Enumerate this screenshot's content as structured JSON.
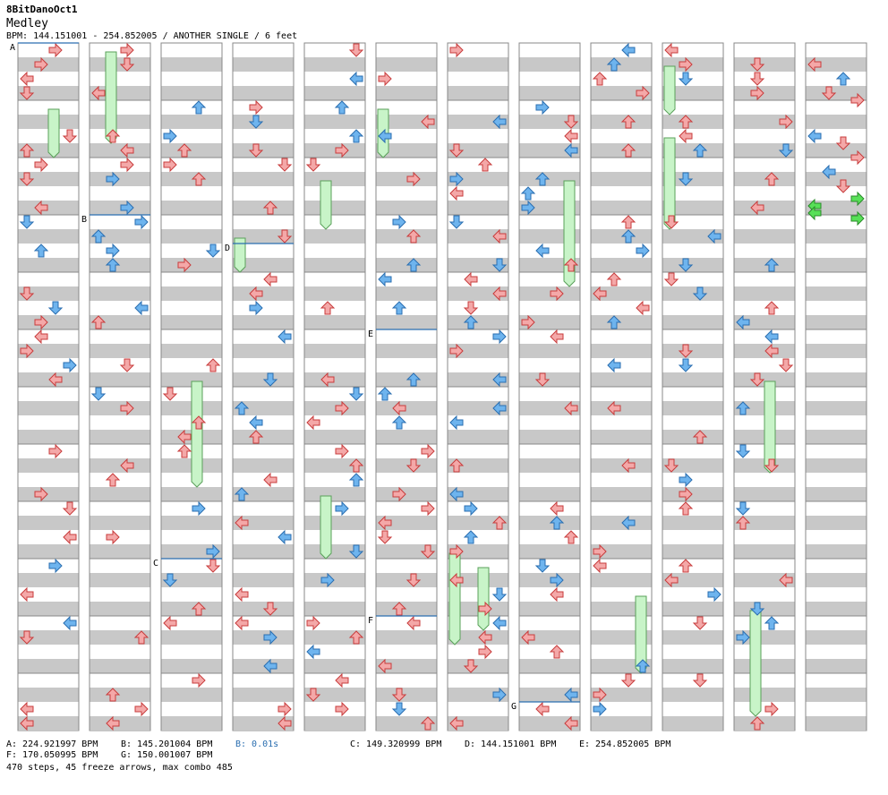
{
  "header": {
    "title": "8BitDanoOct1",
    "song": "Medley",
    "meta": "BPM: 144.151001 - 254.852005 / ANOTHER SINGLE / 6 feet"
  },
  "sections": [
    {
      "letter": "A",
      "label": "A: 224.921997 BPM"
    },
    {
      "letter": "B",
      "label": "B: 145.201004 BPM"
    },
    {
      "letter": "B",
      "label": "B: 0.01s"
    },
    {
      "letter": "C",
      "label": "C: 149.320999 BPM"
    },
    {
      "letter": "D",
      "label": "D: 144.151001 BPM"
    },
    {
      "letter": "E",
      "label": "E: 254.852005 BPM"
    },
    {
      "letter": "F",
      "label": "F: 170.050995 BPM"
    },
    {
      "letter": "G",
      "label": "G: 150.001007 BPM"
    }
  ],
  "summary": "470 steps, 45 freeze arrows, max combo 485",
  "colors": {
    "red_arrow": "#f4a8a8",
    "red_stroke": "#c83c3c",
    "blue_arrow": "#6eb4ee",
    "blue_stroke": "#2a6eb0",
    "pink_arrow": "#f4b8f4",
    "green_arrow": "#58e058",
    "freeze_fill": "#c8f4c8",
    "freeze_stroke": "#5aa05a",
    "stripe": "#c8c8c8",
    "section_line": "#2a6eb0",
    "stop_label": "#2a6eb0"
  }
}
